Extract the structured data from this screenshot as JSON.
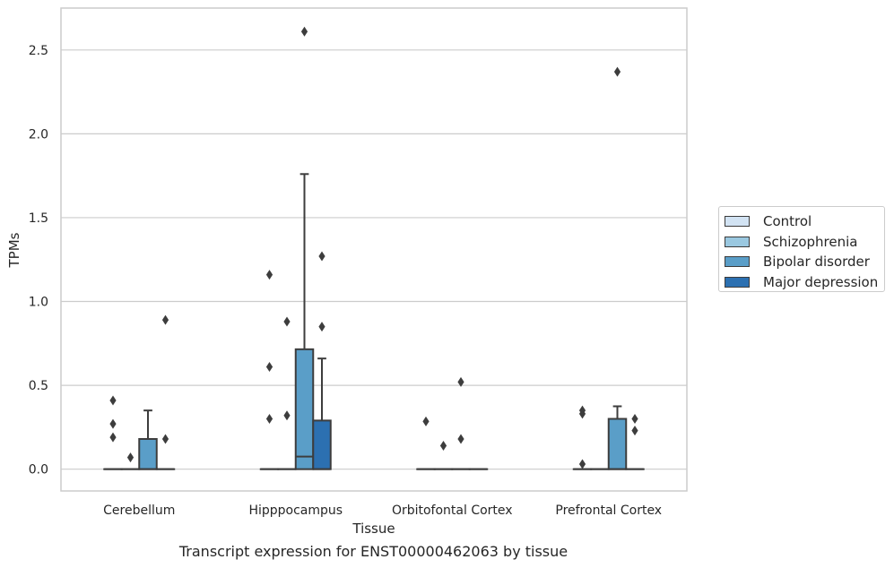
{
  "chart_data": {
    "type": "box",
    "xlabel": "Tissue",
    "ylabel": "TPMs",
    "caption": "Transcript expression for ENST00000462063 by tissue",
    "ylim": [
      -0.13,
      2.75
    ],
    "yticks": [
      0.0,
      0.5,
      1.0,
      1.5,
      2.0,
      2.5
    ],
    "ytick_labels": [
      "0.0",
      "0.5",
      "1.0",
      "1.5",
      "2.0",
      "2.5"
    ],
    "grid": "horizontal",
    "legend_position": "right",
    "categories": [
      "Cerebellum",
      "Hipppocampus",
      "Orbitofontal Cortex",
      "Prefrontal Cortex"
    ],
    "series": [
      {
        "name": "Control",
        "color": "#d2e3f3",
        "boxes": [
          {
            "q1": 0,
            "median": 0,
            "q3": 0,
            "whisker_low": 0,
            "whisker_high": 0,
            "outliers": [
              0.41,
              0.27,
              0.19
            ]
          },
          {
            "q1": 0,
            "median": 0,
            "q3": 0,
            "whisker_low": 0,
            "whisker_high": 0,
            "outliers": [
              1.16,
              0.61,
              0.3
            ]
          },
          {
            "q1": 0,
            "median": 0,
            "q3": 0,
            "whisker_low": 0,
            "whisker_high": 0,
            "outliers": [
              0.285
            ]
          },
          {
            "q1": 0,
            "median": 0,
            "q3": 0,
            "whisker_low": 0,
            "whisker_high": 0,
            "outliers": [
              0.35,
              0.33,
              0.03
            ]
          }
        ]
      },
      {
        "name": "Schizophrenia",
        "color": "#9ac8e0",
        "boxes": [
          {
            "q1": 0,
            "median": 0,
            "q3": 0,
            "whisker_low": 0,
            "whisker_high": 0,
            "outliers": [
              0.07
            ]
          },
          {
            "q1": 0,
            "median": 0,
            "q3": 0,
            "whisker_low": 0,
            "whisker_high": 0,
            "outliers": [
              0.88,
              0.32
            ]
          },
          {
            "q1": 0,
            "median": 0,
            "q3": 0,
            "whisker_low": 0,
            "whisker_high": 0,
            "outliers": [
              0.14
            ]
          },
          {
            "q1": 0,
            "median": 0,
            "q3": 0,
            "whisker_low": 0,
            "whisker_high": 0,
            "outliers": []
          }
        ]
      },
      {
        "name": "Bipolar disorder",
        "color": "#5a9ec8",
        "boxes": [
          {
            "q1": 0,
            "median": 0,
            "q3": 0.18,
            "whisker_low": 0,
            "whisker_high": 0.35,
            "outliers": []
          },
          {
            "q1": 0,
            "median": 0.075,
            "q3": 0.715,
            "whisker_low": 0,
            "whisker_high": 1.76,
            "outliers": [
              2.61
            ]
          },
          {
            "q1": 0,
            "median": 0,
            "q3": 0,
            "whisker_low": 0,
            "whisker_high": 0,
            "outliers": [
              0.18,
              0.52
            ]
          },
          {
            "q1": 0,
            "median": 0,
            "q3": 0.3,
            "whisker_low": 0,
            "whisker_high": 0.375,
            "outliers": [
              2.37
            ]
          }
        ]
      },
      {
        "name": "Major depression",
        "color": "#2c70b1",
        "boxes": [
          {
            "q1": 0,
            "median": 0,
            "q3": 0,
            "whisker_low": 0,
            "whisker_high": 0,
            "outliers": [
              0.89,
              0.18
            ]
          },
          {
            "q1": 0,
            "median": 0,
            "q3": 0.29,
            "whisker_low": 0,
            "whisker_high": 0.66,
            "outliers": [
              1.27,
              0.85
            ]
          },
          {
            "q1": 0,
            "median": 0,
            "q3": 0,
            "whisker_low": 0,
            "whisker_high": 0,
            "outliers": []
          },
          {
            "q1": 0,
            "median": 0,
            "q3": 0,
            "whisker_low": 0,
            "whisker_high": 0,
            "outliers": [
              0.3,
              0.23
            ]
          }
        ]
      }
    ]
  }
}
